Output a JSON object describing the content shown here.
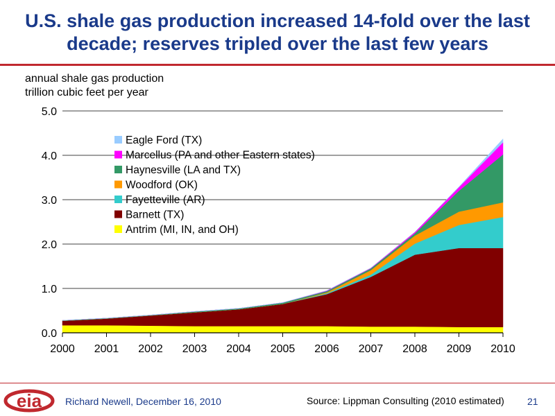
{
  "slide": {
    "title_line1": "U.S. shale gas production increased 14-fold over the last",
    "title_line2": "decade; reserves tripled over the last few years",
    "author": "Richard Newell, December 16, 2010",
    "source": "Source: Lippman Consulting (2010 estimated)",
    "page_number": "21",
    "logo_text": "eia"
  },
  "chart_data": {
    "type": "area",
    "stacked": true,
    "ylabel_line1": "annual shale gas production",
    "ylabel_line2": "trillion cubic feet per year",
    "ylim": [
      0,
      5
    ],
    "yticks": [
      "0.0",
      "1.0",
      "2.0",
      "3.0",
      "4.0",
      "5.0"
    ],
    "x": [
      "2000",
      "2001",
      "2002",
      "2003",
      "2004",
      "2005",
      "2006",
      "2007",
      "2008",
      "2009",
      "2010"
    ],
    "legend_position": "upper-left",
    "series": [
      {
        "name": "Antrim (MI, IN, and OH)",
        "color": "#ffff00",
        "values": [
          0.17,
          0.17,
          0.16,
          0.15,
          0.15,
          0.15,
          0.15,
          0.14,
          0.14,
          0.13,
          0.13
        ]
      },
      {
        "name": "Barnett (TX)",
        "color": "#800000",
        "values": [
          0.1,
          0.15,
          0.23,
          0.31,
          0.38,
          0.5,
          0.72,
          1.12,
          1.62,
          1.78,
          1.78
        ]
      },
      {
        "name": "Fayetteville (AR)",
        "color": "#33cccc",
        "values": [
          0,
          0,
          0,
          0,
          0,
          0,
          0.02,
          0.05,
          0.25,
          0.52,
          0.7
        ]
      },
      {
        "name": "Woodford (OK)",
        "color": "#ff9900",
        "values": [
          0,
          0,
          0,
          0,
          0,
          0,
          0.02,
          0.1,
          0.18,
          0.3,
          0.33
        ]
      },
      {
        "name": "Haynesville (LA and TX)",
        "color": "#339966",
        "values": [
          0.01,
          0.01,
          0.01,
          0.02,
          0.02,
          0.03,
          0.03,
          0.04,
          0.05,
          0.47,
          1.08
        ]
      },
      {
        "name": "Marcellus (PA and other Eastern states)",
        "color": "#ff00ff",
        "values": [
          0,
          0,
          0,
          0,
          0,
          0,
          0.01,
          0.01,
          0.03,
          0.08,
          0.27
        ]
      },
      {
        "name": "Eagle Ford (TX)",
        "color": "#99ccff",
        "values": [
          0,
          0,
          0,
          0,
          0,
          0,
          0,
          0,
          0,
          0.01,
          0.08
        ]
      }
    ]
  }
}
